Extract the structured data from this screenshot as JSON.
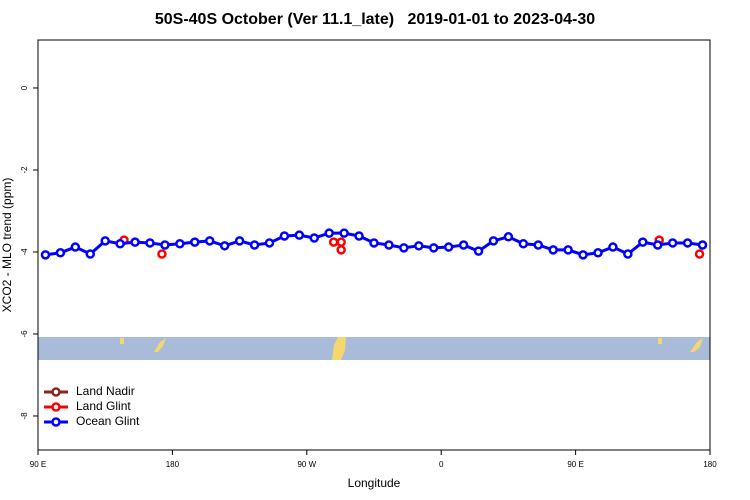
{
  "chart_data": {
    "type": "scatter",
    "title": "50S-40S October (Ver 11.1_late)   2019-01-01 to 2023-04-30",
    "x_label": "Longitude",
    "y_label": "XCO2 - MLO trend (ppm)",
    "xlim": [
      90,
      540
    ],
    "xticks": [
      {
        "value": 90,
        "label": "90 E"
      },
      {
        "value": 180,
        "label": "180"
      },
      {
        "value": 270,
        "label": "90 W"
      },
      {
        "value": 360,
        "label": "0"
      },
      {
        "value": 450,
        "label": "90 E"
      },
      {
        "value": 540,
        "label": "180"
      }
    ],
    "ylim": [
      -8.83,
      1.17
    ],
    "yticks": [
      0,
      -2,
      -4,
      -6,
      -8
    ],
    "legend": "bottomleft",
    "series": [
      {
        "name": "Land Nadir",
        "color": "#8b2323",
        "x": [],
        "values": [],
        "line": true
      },
      {
        "name": "Land Glint",
        "color": "#ff0000",
        "x": [
          147.6,
          173,
          288,
          293,
          293,
          506,
          533
        ],
        "values": [
          -3.71,
          -4.05,
          -3.76,
          -3.76,
          -3.95,
          -3.71,
          -4.05
        ],
        "line": false
      },
      {
        "name": "Ocean Glint",
        "color": "#0000ff",
        "x": [
          95,
          105,
          115,
          125,
          135,
          145,
          155,
          165,
          175,
          185,
          195,
          205,
          215,
          225,
          235,
          245,
          255,
          265,
          275,
          285,
          295,
          305,
          315,
          325,
          335,
          345,
          355,
          365,
          375,
          385,
          395,
          405,
          415,
          425,
          435,
          445,
          455,
          465,
          475,
          485,
          495,
          505,
          515,
          525,
          535
        ],
        "values": [
          -4.07,
          -4.02,
          -3.88,
          -4.05,
          -3.73,
          -3.8,
          -3.76,
          -3.78,
          -3.83,
          -3.8,
          -3.76,
          -3.73,
          -3.85,
          -3.73,
          -3.83,
          -3.78,
          -3.61,
          -3.59,
          -3.66,
          -3.54,
          -3.54,
          -3.61,
          -3.78,
          -3.83,
          -3.9,
          -3.85,
          -3.9,
          -3.88,
          -3.83,
          -3.98,
          -3.73,
          -3.63,
          -3.8,
          -3.83,
          -3.95,
          -3.95,
          -4.07,
          -4.02,
          -3.88,
          -4.05,
          -3.76,
          -3.83,
          -3.78,
          -3.78,
          -3.83
        ],
        "line": true
      }
    ]
  }
}
